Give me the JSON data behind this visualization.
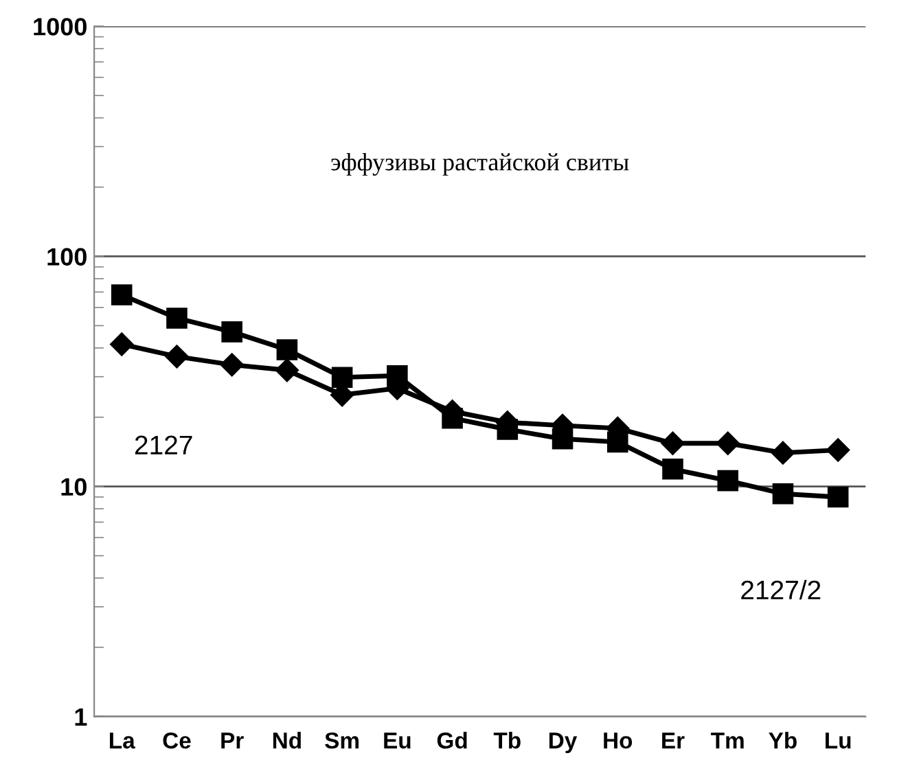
{
  "chart_data": {
    "type": "line",
    "title": "эффузивы растайской свиты",
    "categories": [
      "La",
      "Ce",
      "Pr",
      "Nd",
      "Sm",
      "Eu",
      "Gd",
      "Tb",
      "Dy",
      "Ho",
      "Er",
      "Tm",
      "Yb",
      "Lu"
    ],
    "series": [
      {
        "color": "#000000",
        "marker": "diamond",
        "values": [
          41.5,
          36.7,
          33.8,
          32,
          25,
          26.7,
          21.2,
          19,
          18.4,
          17.9,
          15.4,
          15.4,
          14,
          14.4
        ]
      },
      {
        "color": "#000000",
        "marker": "square",
        "values": [
          68,
          53.9,
          47,
          39.3,
          29.8,
          30.3,
          19.8,
          17.7,
          16.1,
          15.6,
          11.9,
          10.6,
          9.3,
          9.0
        ]
      }
    ],
    "annotations": [
      "2127",
      "2127/2"
    ],
    "log": true,
    "ylim": [
      1,
      1000
    ],
    "yticks": [
      1,
      10,
      100,
      1000
    ],
    "grid": "y",
    "line_style": "solid"
  }
}
